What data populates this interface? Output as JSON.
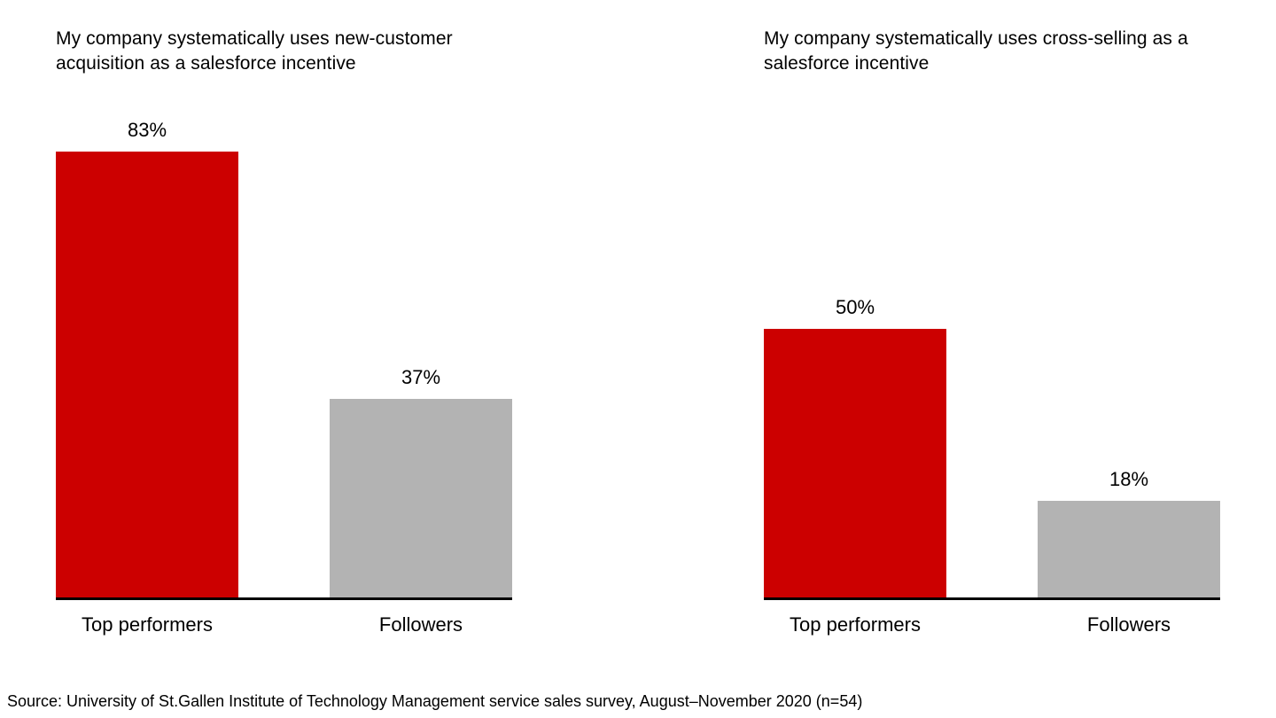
{
  "page": {
    "source_note": "Source: University of St.Gallen Institute of Technology Management service sales survey, August–November 2020 (n=54)"
  },
  "colors": {
    "top_performers_bar": "#cc0000",
    "followers_bar": "#b3b3b3",
    "axis_line": "#000000"
  },
  "chart_data": [
    {
      "type": "bar",
      "title": "My company systematically uses new-customer acquisition as a salesforce incentive",
      "categories": [
        "Top performers",
        "Followers"
      ],
      "values": [
        83,
        37
      ],
      "value_labels": [
        "83%",
        "37%"
      ],
      "xlabel": "",
      "ylabel": "",
      "ylim": [
        0,
        100
      ],
      "grid": false,
      "legend": "none",
      "bar_colors": [
        "#cc0000",
        "#b3b3b3"
      ]
    },
    {
      "type": "bar",
      "title": "My company systematically uses cross-selling as a salesforce incentive",
      "categories": [
        "Top performers",
        "Followers"
      ],
      "values": [
        50,
        18
      ],
      "value_labels": [
        "50%",
        "18%"
      ],
      "xlabel": "",
      "ylabel": "",
      "ylim": [
        0,
        100
      ],
      "grid": false,
      "legend": "none",
      "bar_colors": [
        "#cc0000",
        "#b3b3b3"
      ]
    }
  ]
}
